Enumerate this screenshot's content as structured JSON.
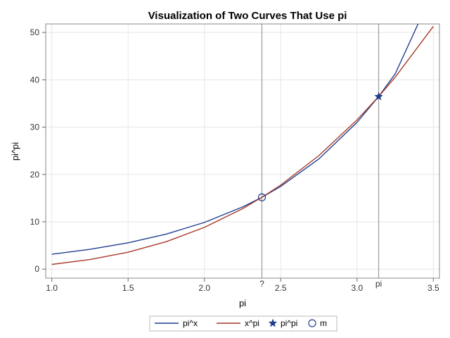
{
  "chart_data": {
    "type": "line",
    "title": "Visualization of Two Curves That Use pi",
    "xlabel": "pi",
    "ylabel": "pi^pi",
    "xlim": [
      0.96,
      3.54
    ],
    "ylim": [
      -1.9,
      51.8
    ],
    "x_ticks": [
      1.0,
      1.5,
      2.0,
      2.5,
      3.0,
      3.5
    ],
    "x_tick_labels": [
      "1.0",
      "1.5",
      "2.0",
      "2.5",
      "3.0",
      "3.5"
    ],
    "y_ticks": [
      0,
      10,
      20,
      30,
      40,
      50
    ],
    "y_tick_labels": [
      "0",
      "10",
      "20",
      "30",
      "40",
      "50"
    ],
    "grid": true,
    "legend_position": "bottom",
    "series": [
      {
        "name": "pi^x",
        "type": "line",
        "color": "#1f3f8f",
        "x": [
          1.0,
          1.25,
          1.5,
          1.75,
          2.0,
          2.25,
          2.3767,
          2.5,
          2.75,
          3.0,
          3.1416,
          3.25,
          3.4
        ],
        "y": [
          3.14,
          4.18,
          5.57,
          7.41,
          9.87,
          13.14,
          15.17,
          17.49,
          23.29,
          31.0,
          36.46,
          41.27,
          51.8
        ]
      },
      {
        "name": "x^pi",
        "type": "line",
        "color": "#a63a2a",
        "x": [
          1.0,
          1.25,
          1.5,
          1.75,
          2.0,
          2.25,
          2.3767,
          2.5,
          2.75,
          3.0,
          3.1416,
          3.25,
          3.5
        ],
        "y": [
          1.0,
          2.02,
          3.57,
          5.81,
          8.82,
          12.76,
          15.17,
          17.77,
          23.99,
          31.54,
          36.46,
          40.56,
          51.3
        ]
      },
      {
        "name": "pi^pi",
        "type": "marker",
        "marker": "star",
        "color": "#1f3f8f",
        "x": [
          3.1416
        ],
        "y": [
          36.46
        ]
      },
      {
        "name": "m",
        "type": "marker",
        "marker": "circle",
        "color": "#1f3f8f",
        "x": [
          2.3767
        ],
        "y": [
          15.17
        ]
      }
    ],
    "reference_lines": [
      {
        "axis": "x",
        "value": 2.3767,
        "label": "?"
      },
      {
        "axis": "x",
        "value": 3.1416,
        "label": "pi"
      }
    ]
  }
}
